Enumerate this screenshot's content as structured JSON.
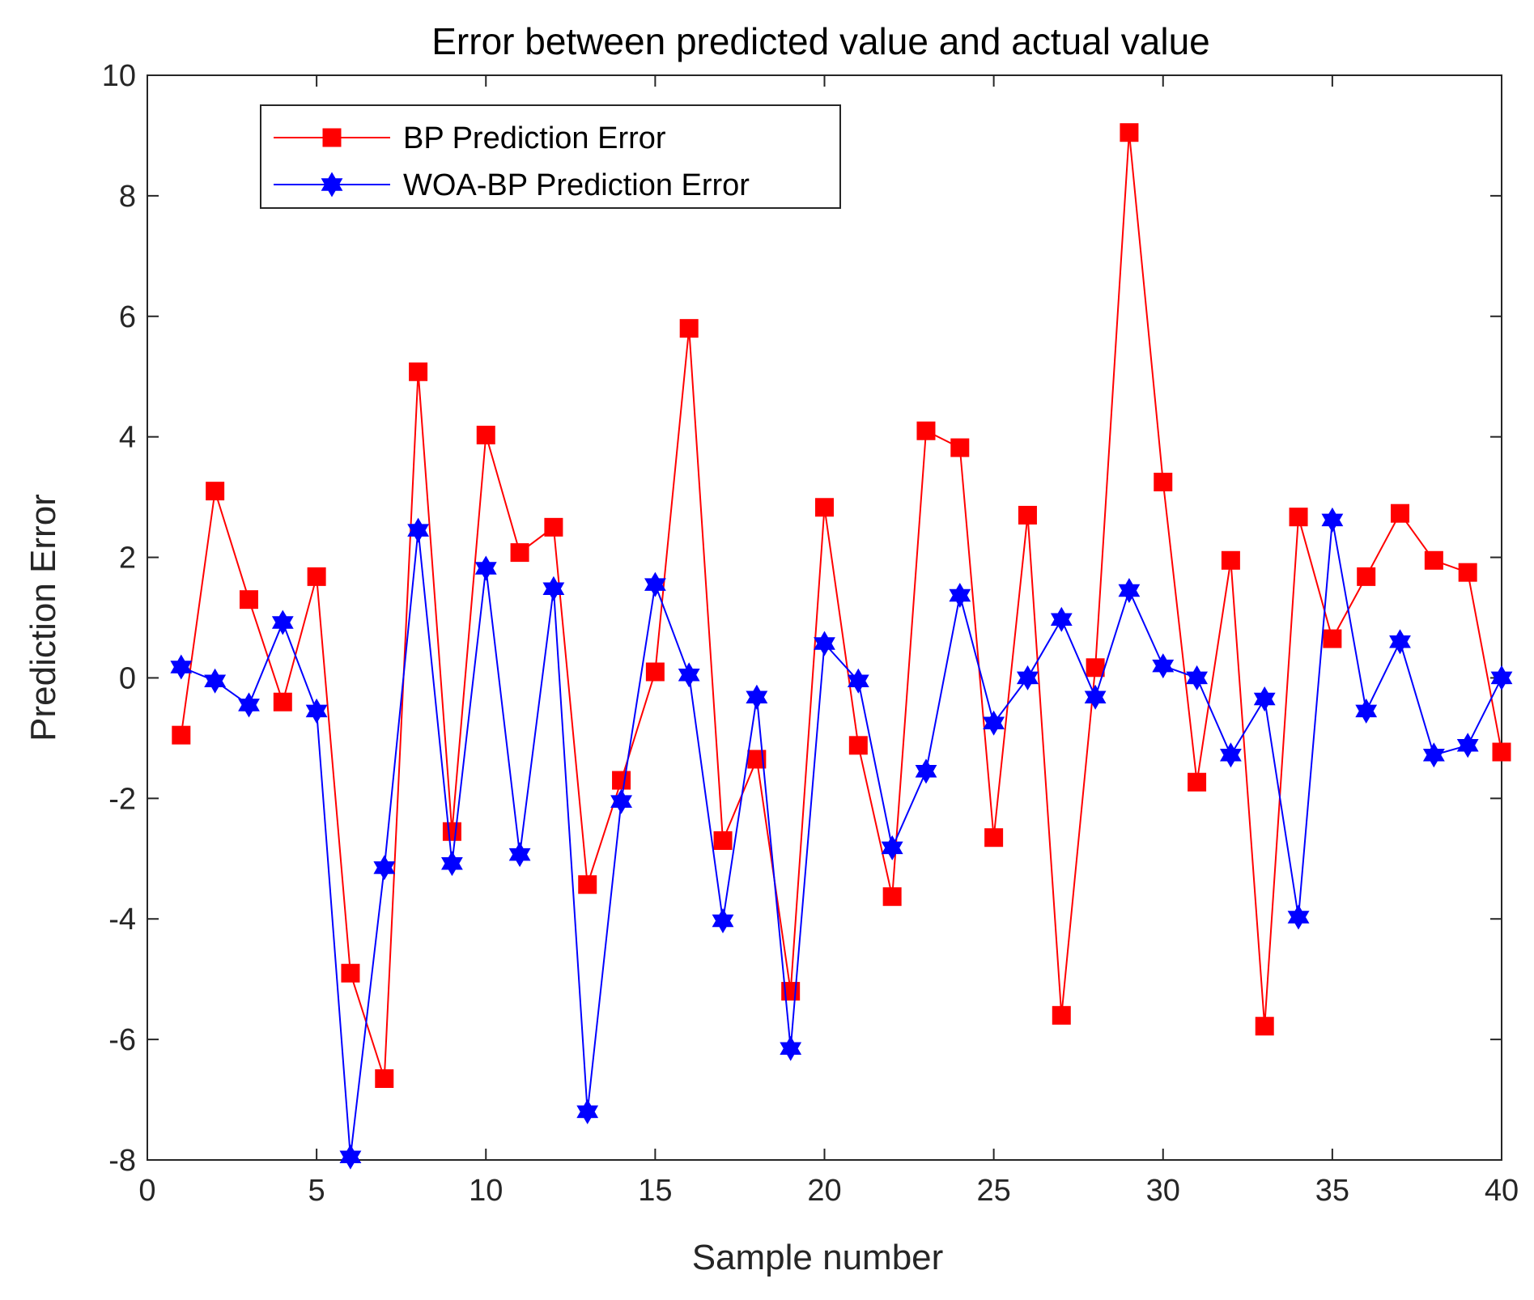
{
  "chart_data": {
    "type": "line",
    "title": "Error between predicted value and actual value",
    "xlabel": "Sample number",
    "ylabel": "Prediction Error",
    "xlim": [
      0,
      40
    ],
    "ylim": [
      -8,
      10
    ],
    "xticks": [
      0,
      5,
      10,
      15,
      20,
      25,
      30,
      35,
      40
    ],
    "yticks": [
      -8,
      -6,
      -4,
      -2,
      0,
      2,
      4,
      6,
      8,
      10
    ],
    "grid": false,
    "legend_position": "top-left",
    "x": [
      1,
      2,
      3,
      4,
      5,
      6,
      7,
      8,
      9,
      10,
      11,
      12,
      13,
      14,
      15,
      16,
      17,
      18,
      19,
      20,
      21,
      22,
      23,
      24,
      25,
      26,
      27,
      28,
      29,
      30,
      31,
      32,
      33,
      34,
      35,
      36,
      37,
      38,
      39,
      40
    ],
    "series": [
      {
        "name": "BP Prediction Error",
        "color": "#ff0000",
        "marker": "square",
        "values": [
          -0.95,
          3.1,
          1.3,
          -0.4,
          1.68,
          -4.9,
          -6.65,
          5.08,
          -2.55,
          4.03,
          2.08,
          2.5,
          -3.43,
          -1.7,
          0.1,
          5.8,
          -2.7,
          -1.35,
          -5.2,
          2.83,
          -1.12,
          -3.63,
          4.1,
          3.82,
          -2.65,
          2.7,
          -5.6,
          0.17,
          9.05,
          3.25,
          -1.73,
          1.95,
          -5.78,
          2.67,
          0.65,
          1.68,
          2.73,
          1.95,
          1.75,
          -1.23
        ]
      },
      {
        "name": "WOA-BP Prediction Error",
        "color": "#0000ff",
        "marker": "hexagram",
        "values": [
          0.18,
          -0.05,
          -0.45,
          0.92,
          -0.55,
          -7.95,
          -3.15,
          2.45,
          -3.08,
          1.82,
          -2.93,
          1.48,
          -7.2,
          -2.05,
          1.55,
          0.05,
          -4.03,
          -0.32,
          -6.15,
          0.57,
          -0.05,
          -2.82,
          -1.55,
          1.37,
          -0.75,
          0.0,
          0.97,
          -0.32,
          1.45,
          0.2,
          0.0,
          -1.28,
          -0.35,
          -3.97,
          2.62,
          -0.55,
          0.6,
          -1.28,
          -1.12,
          0.0
        ]
      }
    ]
  }
}
